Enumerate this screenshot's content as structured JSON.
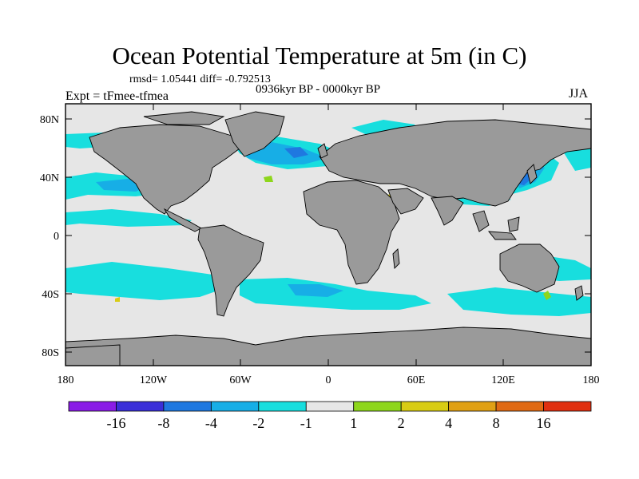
{
  "title": "Ocean Potential Temperature at 5m (in C)",
  "stats": "rmsd= 1.05441 diff= -0.792513",
  "experiment": "Expt = tFmee-tfmea",
  "period": "0936kyr BP - 0000kyr BP",
  "season": "JJA",
  "axes": {
    "y_ticks": [
      "80N",
      "40N",
      "0",
      "40S",
      "80S"
    ],
    "x_ticks": [
      "180",
      "120W",
      "60W",
      "0",
      "60E",
      "120E",
      "180"
    ]
  },
  "colorbar": {
    "labels": [
      "-16",
      "-8",
      "-4",
      "-2",
      "-1",
      "1",
      "2",
      "4",
      "8",
      "16"
    ],
    "colors": [
      "#8a1ce6",
      "#3a2fd8",
      "#1f78e0",
      "#17aee6",
      "#18dede",
      "#e6e6e6",
      "#8ed61c",
      "#d8cc14",
      "#e0a014",
      "#e06a14",
      "#e03010"
    ]
  },
  "map_colors": {
    "land": "#9a9a9a",
    "ocean_neutral": "#e6e6e6",
    "cyan": "#18dede",
    "light_blue": "#17aee6",
    "blue": "#1f78e0",
    "green": "#8ed61c",
    "yellow": "#d8cc14",
    "frame": "#000000"
  }
}
